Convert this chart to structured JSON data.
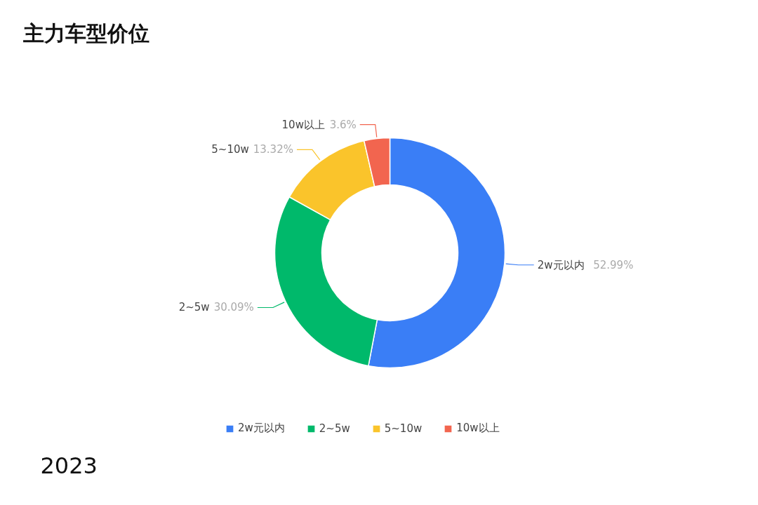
{
  "chart_data": {
    "type": "donut",
    "title": "主力车型价位",
    "categories": [
      "2w元以内",
      "2~5w",
      "5~10w",
      "10w以上"
    ],
    "values": [
      52.99,
      30.09,
      13.32,
      3.6
    ],
    "value_labels": [
      "52.99%",
      "30.09%",
      "13.32%",
      "3.6%"
    ],
    "colors": [
      "#3a7ef6",
      "#00b96b",
      "#fac42b",
      "#f2654f"
    ],
    "legend": "bottom",
    "annotations": [
      "2023"
    ]
  }
}
